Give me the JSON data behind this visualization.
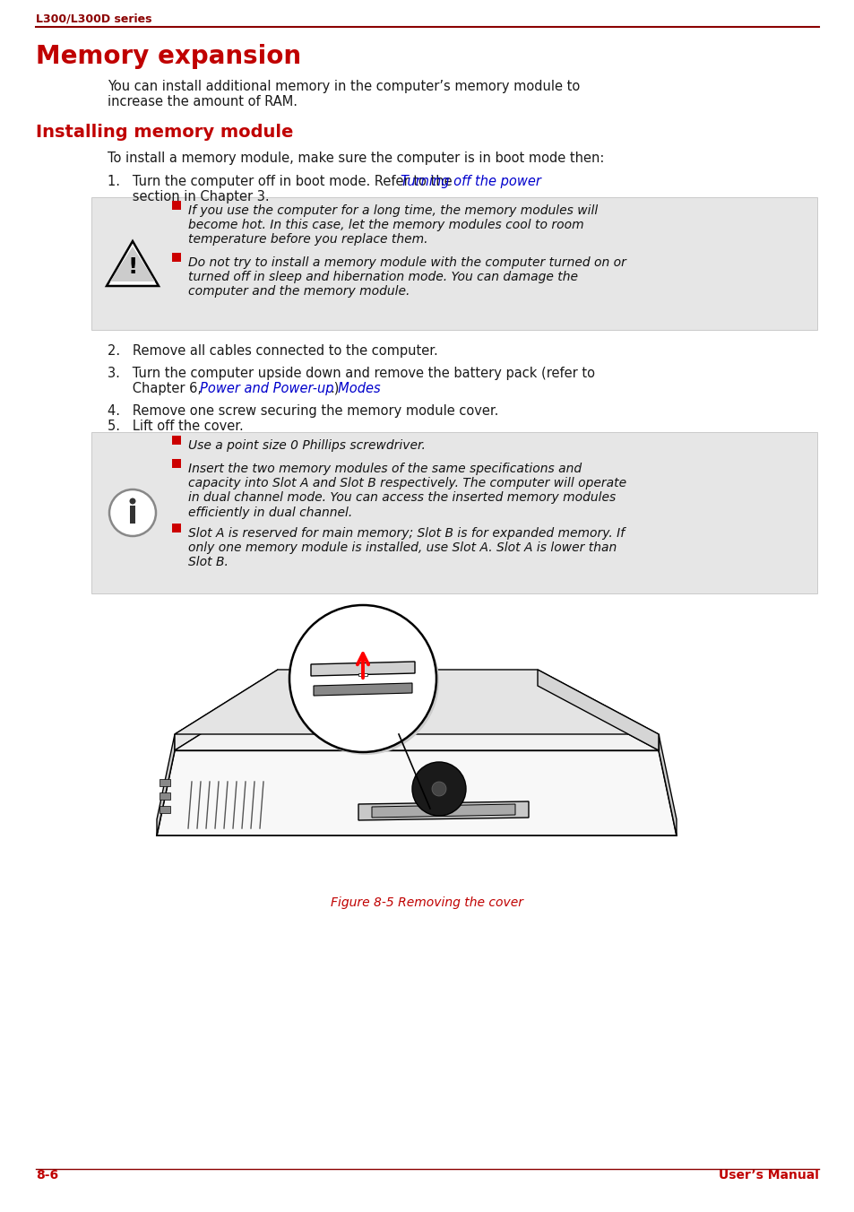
{
  "bg_color": "#ffffff",
  "header_text": "L300/L300D series",
  "header_color": "#8b0000",
  "title": "Memory expansion",
  "title_color": "#c00000",
  "subtitle": "Installing memory module",
  "subtitle_color": "#c00000",
  "body_color": "#1a1a1a",
  "link_color": "#0000cc",
  "gray_box_color": "#e6e6e6",
  "red_bullet_color": "#cc0000",
  "footer_left": "8-6",
  "footer_right": "User’s Manual",
  "footer_color": "#c00000",
  "para1_line1": "You can install additional memory in the computer’s memory module to",
  "para1_line2": "increase the amount of RAM.",
  "para2": "To install a memory module, make sure the computer is in boot mode then:",
  "item1_pre": "1.   Turn the computer off in boot mode. Refer to the ",
  "item1_link": "Turning off the power",
  "item1_line2": "      section in Chapter 3.",
  "warn1": "If you use the computer for a long time, the memory modules will\nbecome hot. In this case, let the memory modules cool to room\ntemperature before you replace them.",
  "warn2": "Do not try to install a memory module with the computer turned on or\nturned off in sleep and hibernation mode. You can damage the\ncomputer and the memory module.",
  "item2": "2.   Remove all cables connected to the computer.",
  "item3_line1": "3.   Turn the computer upside down and remove the battery pack (refer to",
  "item3_line2_pre": "      Chapter 6, ",
  "item3_link": "Power and Power-up Modes",
  "item3_link_post": ".)",
  "item4": "4.   Remove one screw securing the memory module cover.",
  "item5": "5.   Lift off the cover.",
  "note1": "Use a point size 0 Phillips screwdriver.",
  "note2": "Insert the two memory modules of the same specifications and\ncapacity into Slot A and Slot B respectively. The computer will operate\nin dual channel mode. You can access the inserted memory modules\nefficiently in dual channel.",
  "note3": "Slot A is reserved for main memory; Slot B is for expanded memory. If\nonly one memory module is installed, use Slot A. Slot A is lower than\nSlot B.",
  "fig_caption": "Figure 8-5 Removing the cover"
}
